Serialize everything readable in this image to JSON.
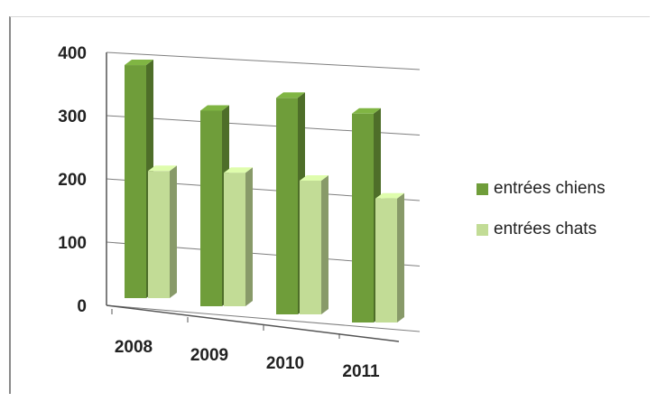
{
  "chart_data": {
    "type": "bar",
    "categories": [
      "2008",
      "2009",
      "2010",
      "2011"
    ],
    "series": [
      {
        "name": "entrées chiens",
        "values": [
          385,
          315,
          340,
          320
        ],
        "color": "#6f9d3a"
      },
      {
        "name": "entrées chats",
        "values": [
          210,
          215,
          210,
          190
        ],
        "color": "#c2dc96"
      }
    ],
    "yticks": [
      "0",
      "100",
      "200",
      "300",
      "400"
    ],
    "ylim": [
      0,
      400
    ],
    "grid": true,
    "legend_position": "right",
    "style": "3d-clustered-column"
  }
}
